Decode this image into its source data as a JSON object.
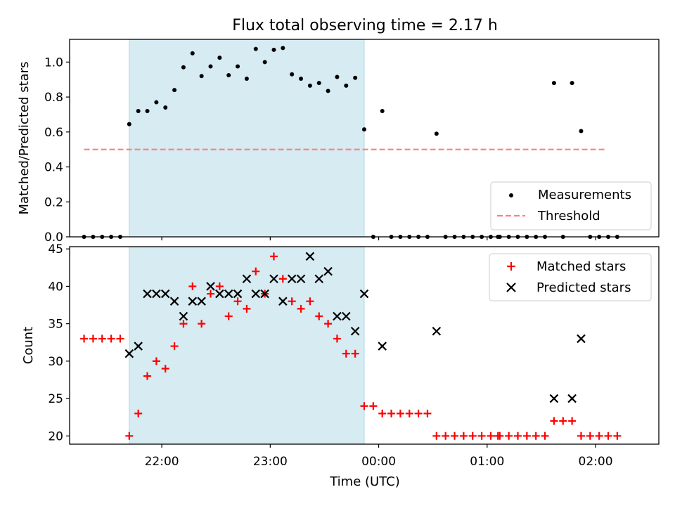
{
  "title": "Flux total observing time = 2.17 h",
  "colors": {
    "shade": "#add8e6",
    "measurement": "#000000",
    "threshold": "#ff7f7f",
    "matched": "#ff0000",
    "predicted": "#000000"
  },
  "chart_data": [
    {
      "type": "scatter",
      "ylabel": "Matched/Predicted stars",
      "ylim": [
        0,
        1.13
      ],
      "yticks": [
        0.0,
        0.2,
        0.4,
        0.6,
        0.8,
        1.0
      ],
      "ytick_labels": [
        "0.0",
        "0.2",
        "0.4",
        "0.6",
        "0.8",
        "1.0"
      ],
      "xlim": [
        "21:09",
        "02:35"
      ],
      "shaded_span": [
        "21:42",
        "23:52"
      ],
      "legend": {
        "loc": "lower right",
        "entries": [
          "Measurements",
          "Threshold"
        ]
      },
      "threshold": {
        "name": "Threshold",
        "y": 0.5,
        "x": [
          "21:17",
          "02:06"
        ]
      },
      "series": [
        {
          "name": "Measurements",
          "points": [
            [
              "21:17",
              0
            ],
            [
              "21:22",
              0
            ],
            [
              "21:27",
              0
            ],
            [
              "21:32",
              0
            ],
            [
              "21:37",
              0
            ],
            [
              "21:42",
              0.645
            ],
            [
              "21:47",
              0.72
            ],
            [
              "21:52",
              0.72
            ],
            [
              "21:57",
              0.77
            ],
            [
              "22:02",
              0.74
            ],
            [
              "22:07",
              0.84
            ],
            [
              "22:12",
              0.97
            ],
            [
              "22:17",
              1.05
            ],
            [
              "22:22",
              0.92
            ],
            [
              "22:27",
              0.975
            ],
            [
              "22:32",
              1.025
            ],
            [
              "22:37",
              0.925
            ],
            [
              "22:42",
              0.975
            ],
            [
              "22:47",
              0.905
            ],
            [
              "22:52",
              1.075
            ],
            [
              "22:57",
              1.0
            ],
            [
              "23:02",
              1.07
            ],
            [
              "23:07",
              1.08
            ],
            [
              "23:12",
              0.93
            ],
            [
              "23:17",
              0.905
            ],
            [
              "23:22",
              0.865
            ],
            [
              "23:27",
              0.88
            ],
            [
              "23:32",
              0.835
            ],
            [
              "23:37",
              0.915
            ],
            [
              "23:42",
              0.865
            ],
            [
              "23:47",
              0.91
            ],
            [
              "23:52",
              0.615
            ],
            [
              "23:57",
              0
            ],
            [
              "00:02",
              0.72
            ],
            [
              "00:07",
              0
            ],
            [
              "00:12",
              0
            ],
            [
              "00:17",
              0
            ],
            [
              "00:22",
              0
            ],
            [
              "00:27",
              0
            ],
            [
              "00:32",
              0.59
            ],
            [
              "00:37",
              0
            ],
            [
              "00:42",
              0
            ],
            [
              "00:47",
              0
            ],
            [
              "00:52",
              0
            ],
            [
              "00:57",
              0
            ],
            [
              "01:02",
              0
            ],
            [
              "01:06",
              0
            ],
            [
              "01:07",
              0
            ],
            [
              "01:12",
              0
            ],
            [
              "01:17",
              0
            ],
            [
              "01:22",
              0
            ],
            [
              "01:27",
              0
            ],
            [
              "01:32",
              0
            ],
            [
              "01:37",
              0.88
            ],
            [
              "01:42",
              0
            ],
            [
              "01:47",
              0.88
            ],
            [
              "01:52",
              0.605
            ],
            [
              "01:57",
              0
            ],
            [
              "02:02",
              0
            ],
            [
              "02:07",
              0
            ],
            [
              "02:12",
              0
            ]
          ]
        }
      ]
    },
    {
      "type": "scatter",
      "ylabel": "Count",
      "xlabel": "Time (UTC)",
      "ylim": [
        18.9,
        45.3
      ],
      "yticks": [
        20,
        25,
        30,
        35,
        40,
        45
      ],
      "ytick_labels": [
        "20",
        "25",
        "30",
        "35",
        "40",
        "45"
      ],
      "xlim": [
        "21:09",
        "02:35"
      ],
      "xticks": [
        "22:00",
        "23:00",
        "00:00",
        "01:00",
        "02:00"
      ],
      "xtick_labels": [
        "22:00",
        "23:00",
        "00:00",
        "01:00",
        "02:00"
      ],
      "shaded_span": [
        "21:42",
        "23:52"
      ],
      "legend": {
        "loc": "upper right",
        "entries": [
          "Matched stars",
          "Predicted stars"
        ]
      },
      "series": [
        {
          "name": "Matched stars",
          "marker": "+",
          "points": [
            [
              "21:17",
              33
            ],
            [
              "21:22",
              33
            ],
            [
              "21:27",
              33
            ],
            [
              "21:32",
              33
            ],
            [
              "21:37",
              33
            ],
            [
              "21:42",
              20
            ],
            [
              "21:47",
              23
            ],
            [
              "21:52",
              28
            ],
            [
              "21:57",
              30
            ],
            [
              "22:02",
              29
            ],
            [
              "22:07",
              32
            ],
            [
              "22:12",
              35
            ],
            [
              "22:17",
              40
            ],
            [
              "22:22",
              35
            ],
            [
              "22:27",
              39
            ],
            [
              "22:32",
              40
            ],
            [
              "22:37",
              36
            ],
            [
              "22:42",
              38
            ],
            [
              "22:47",
              37
            ],
            [
              "22:52",
              42
            ],
            [
              "22:57",
              39
            ],
            [
              "23:02",
              44
            ],
            [
              "23:07",
              41
            ],
            [
              "23:12",
              38
            ],
            [
              "23:17",
              37
            ],
            [
              "23:22",
              38
            ],
            [
              "23:27",
              36
            ],
            [
              "23:32",
              35
            ],
            [
              "23:37",
              33
            ],
            [
              "23:42",
              31
            ],
            [
              "23:47",
              31
            ],
            [
              "23:52",
              24
            ],
            [
              "23:57",
              24
            ],
            [
              "00:02",
              23
            ],
            [
              "00:07",
              23
            ],
            [
              "00:12",
              23
            ],
            [
              "00:17",
              23
            ],
            [
              "00:22",
              23
            ],
            [
              "00:27",
              23
            ],
            [
              "00:32",
              20
            ],
            [
              "00:37",
              20
            ],
            [
              "00:42",
              20
            ],
            [
              "00:47",
              20
            ],
            [
              "00:52",
              20
            ],
            [
              "00:57",
              20
            ],
            [
              "01:02",
              20
            ],
            [
              "01:06",
              20
            ],
            [
              "01:07",
              20
            ],
            [
              "01:12",
              20
            ],
            [
              "01:17",
              20
            ],
            [
              "01:22",
              20
            ],
            [
              "01:27",
              20
            ],
            [
              "01:32",
              20
            ],
            [
              "01:37",
              22
            ],
            [
              "01:42",
              22
            ],
            [
              "01:47",
              22
            ],
            [
              "01:52",
              20
            ],
            [
              "01:57",
              20
            ],
            [
              "02:02",
              20
            ],
            [
              "02:07",
              20
            ],
            [
              "02:12",
              20
            ]
          ]
        },
        {
          "name": "Predicted stars",
          "marker": "x",
          "points": [
            [
              "21:42",
              31
            ],
            [
              "21:47",
              32
            ],
            [
              "21:52",
              39
            ],
            [
              "21:57",
              39
            ],
            [
              "22:02",
              39
            ],
            [
              "22:07",
              38
            ],
            [
              "22:12",
              36
            ],
            [
              "22:17",
              38
            ],
            [
              "22:22",
              38
            ],
            [
              "22:27",
              40
            ],
            [
              "22:32",
              39
            ],
            [
              "22:37",
              39
            ],
            [
              "22:42",
              39
            ],
            [
              "22:47",
              41
            ],
            [
              "22:52",
              39
            ],
            [
              "22:57",
              39
            ],
            [
              "23:02",
              41
            ],
            [
              "23:07",
              38
            ],
            [
              "23:12",
              41
            ],
            [
              "23:17",
              41
            ],
            [
              "23:22",
              44
            ],
            [
              "23:27",
              41
            ],
            [
              "23:32",
              42
            ],
            [
              "23:37",
              36
            ],
            [
              "23:42",
              36
            ],
            [
              "23:47",
              34
            ],
            [
              "23:52",
              39
            ],
            [
              "00:02",
              32
            ],
            [
              "00:32",
              34
            ],
            [
              "01:37",
              25
            ],
            [
              "01:47",
              25
            ],
            [
              "01:52",
              33
            ]
          ]
        }
      ]
    }
  ]
}
